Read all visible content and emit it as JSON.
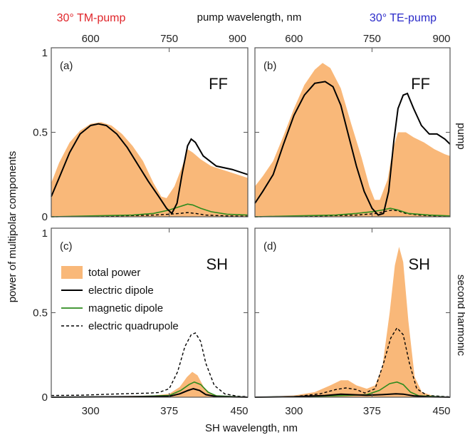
{
  "header": {
    "left_label": "30° TM-pump",
    "center_label": "pump wavelength, nm",
    "right_label": "30° TE-pump"
  },
  "axes": {
    "ylabel": "power of multipolar components",
    "xlabel": "SH wavelength, nm",
    "right_label_top": "pump",
    "right_label_bottom": "second harmonic"
  },
  "colors": {
    "total_power": "#F9B879",
    "electric_dipole": "#000000",
    "magnetic_dipole": "#2E8B1E",
    "electric_quadrupole": "#000000",
    "tm_label": "#E0262B",
    "te_label": "#2B2BC9"
  },
  "legend": {
    "placement": "left, inside panel (c)",
    "entries": [
      {
        "key": "total",
        "label": "total power"
      },
      {
        "key": "ed",
        "label": "electric dipole"
      },
      {
        "key": "md",
        "label": "magnetic dipole"
      },
      {
        "key": "eq",
        "label": "electric quadrupole"
      }
    ]
  },
  "chart_data": [
    {
      "id": "a",
      "type": "area",
      "tag": "(a)",
      "label": "FF",
      "x_axis_label": "pump wavelength, nm",
      "x_ticks": [
        600,
        750,
        900
      ],
      "xlim": [
        525,
        900
      ],
      "ylim": [
        0,
        1
      ],
      "y_ticks": [
        0,
        0.5,
        1
      ],
      "y_tick_labels": [
        "0",
        "0.5",
        "1"
      ],
      "series": {
        "total": [
          [
            525,
            0.2
          ],
          [
            540,
            0.32
          ],
          [
            560,
            0.44
          ],
          [
            580,
            0.51
          ],
          [
            600,
            0.55
          ],
          [
            620,
            0.56
          ],
          [
            640,
            0.54
          ],
          [
            660,
            0.49
          ],
          [
            680,
            0.42
          ],
          [
            700,
            0.33
          ],
          [
            720,
            0.2
          ],
          [
            735,
            0.12
          ],
          [
            745,
            0.11
          ],
          [
            760,
            0.18
          ],
          [
            775,
            0.3
          ],
          [
            785,
            0.4
          ],
          [
            795,
            0.38
          ],
          [
            810,
            0.34
          ],
          [
            830,
            0.3
          ],
          [
            860,
            0.27
          ],
          [
            890,
            0.24
          ],
          [
            900,
            0.23
          ]
        ],
        "ed": [
          [
            525,
            0.12
          ],
          [
            540,
            0.23
          ],
          [
            560,
            0.38
          ],
          [
            580,
            0.49
          ],
          [
            600,
            0.54
          ],
          [
            615,
            0.55
          ],
          [
            630,
            0.54
          ],
          [
            650,
            0.49
          ],
          [
            670,
            0.41
          ],
          [
            690,
            0.31
          ],
          [
            710,
            0.21
          ],
          [
            730,
            0.12
          ],
          [
            745,
            0.05
          ],
          [
            755,
            0.02
          ],
          [
            765,
            0.08
          ],
          [
            775,
            0.26
          ],
          [
            785,
            0.42
          ],
          [
            792,
            0.46
          ],
          [
            800,
            0.44
          ],
          [
            815,
            0.36
          ],
          [
            840,
            0.3
          ],
          [
            870,
            0.28
          ],
          [
            900,
            0.25
          ]
        ],
        "md": [
          [
            525,
            0
          ],
          [
            600,
            0.005
          ],
          [
            680,
            0.01
          ],
          [
            720,
            0.02
          ],
          [
            750,
            0.04
          ],
          [
            770,
            0.06
          ],
          [
            785,
            0.075
          ],
          [
            795,
            0.07
          ],
          [
            810,
            0.05
          ],
          [
            830,
            0.03
          ],
          [
            860,
            0.015
          ],
          [
            900,
            0.01
          ]
        ],
        "eq": [
          [
            525,
            0
          ],
          [
            650,
            0.005
          ],
          [
            720,
            0.01
          ],
          [
            750,
            0.015
          ],
          [
            770,
            0.02
          ],
          [
            785,
            0.025
          ],
          [
            800,
            0.02
          ],
          [
            820,
            0.01
          ],
          [
            860,
            0.005
          ],
          [
            900,
            0.003
          ]
        ]
      }
    },
    {
      "id": "b",
      "type": "area",
      "tag": "(b)",
      "label": "FF",
      "x_axis_label": "pump wavelength, nm",
      "x_ticks": [
        600,
        750,
        900
      ],
      "xlim": [
        525,
        900
      ],
      "ylim": [
        0,
        1
      ],
      "y_ticks": [
        0,
        0.5,
        1
      ],
      "y_tick_labels": [
        "",
        "",
        ""
      ],
      "series": {
        "total": [
          [
            525,
            0.18
          ],
          [
            540,
            0.24
          ],
          [
            560,
            0.33
          ],
          [
            580,
            0.48
          ],
          [
            600,
            0.64
          ],
          [
            620,
            0.78
          ],
          [
            640,
            0.87
          ],
          [
            655,
            0.91
          ],
          [
            670,
            0.88
          ],
          [
            690,
            0.76
          ],
          [
            710,
            0.55
          ],
          [
            730,
            0.35
          ],
          [
            745,
            0.18
          ],
          [
            755,
            0.1
          ],
          [
            765,
            0.1
          ],
          [
            780,
            0.22
          ],
          [
            790,
            0.4
          ],
          [
            800,
            0.5
          ],
          [
            815,
            0.5
          ],
          [
            830,
            0.47
          ],
          [
            850,
            0.44
          ],
          [
            870,
            0.4
          ],
          [
            890,
            0.37
          ],
          [
            900,
            0.36
          ]
        ],
        "ed": [
          [
            525,
            0.08
          ],
          [
            540,
            0.15
          ],
          [
            560,
            0.25
          ],
          [
            580,
            0.43
          ],
          [
            600,
            0.6
          ],
          [
            620,
            0.72
          ],
          [
            640,
            0.79
          ],
          [
            660,
            0.8
          ],
          [
            675,
            0.77
          ],
          [
            690,
            0.66
          ],
          [
            705,
            0.48
          ],
          [
            720,
            0.3
          ],
          [
            735,
            0.15
          ],
          [
            750,
            0.05
          ],
          [
            762,
            0.01
          ],
          [
            772,
            0.02
          ],
          [
            782,
            0.15
          ],
          [
            792,
            0.45
          ],
          [
            800,
            0.64
          ],
          [
            810,
            0.72
          ],
          [
            818,
            0.73
          ],
          [
            830,
            0.64
          ],
          [
            845,
            0.54
          ],
          [
            860,
            0.49
          ],
          [
            875,
            0.49
          ],
          [
            890,
            0.46
          ],
          [
            900,
            0.43
          ]
        ],
        "md": [
          [
            525,
            0
          ],
          [
            600,
            0.005
          ],
          [
            680,
            0.01
          ],
          [
            720,
            0.02
          ],
          [
            750,
            0.03
          ],
          [
            770,
            0.04
          ],
          [
            785,
            0.05
          ],
          [
            800,
            0.04
          ],
          [
            820,
            0.02
          ],
          [
            860,
            0.01
          ],
          [
            900,
            0.005
          ]
        ],
        "eq": [
          [
            525,
            0
          ],
          [
            650,
            0.005
          ],
          [
            720,
            0.01
          ],
          [
            760,
            0.02
          ],
          [
            780,
            0.035
          ],
          [
            790,
            0.04
          ],
          [
            800,
            0.035
          ],
          [
            815,
            0.02
          ],
          [
            840,
            0.01
          ],
          [
            880,
            0.003
          ],
          [
            900,
            0.002
          ]
        ]
      }
    },
    {
      "id": "c",
      "type": "area",
      "tag": "(c)",
      "label": "SH",
      "x_axis_label": "SH wavelength, nm",
      "x_ticks": [
        300,
        375,
        450
      ],
      "xlim": [
        262.5,
        450
      ],
      "ylim": [
        0,
        1
      ],
      "y_ticks": [
        0,
        0.5,
        1
      ],
      "y_tick_labels": [
        "0",
        "0.5",
        "1"
      ],
      "series": {
        "total": [
          [
            262.5,
            0
          ],
          [
            300,
            0.003
          ],
          [
            340,
            0.008
          ],
          [
            360,
            0.01
          ],
          [
            375,
            0.02
          ],
          [
            385,
            0.06
          ],
          [
            392,
            0.12
          ],
          [
            397,
            0.15
          ],
          [
            402,
            0.13
          ],
          [
            408,
            0.06
          ],
          [
            415,
            0.02
          ],
          [
            425,
            0.005
          ],
          [
            450,
            0
          ]
        ],
        "ed": [
          [
            262.5,
            0
          ],
          [
            340,
            0.003
          ],
          [
            375,
            0.005
          ],
          [
            385,
            0.02
          ],
          [
            393,
            0.04
          ],
          [
            398,
            0.05
          ],
          [
            404,
            0.04
          ],
          [
            410,
            0.015
          ],
          [
            420,
            0.004
          ],
          [
            450,
            0
          ]
        ],
        "md": [
          [
            262.5,
            0
          ],
          [
            340,
            0.003
          ],
          [
            375,
            0.01
          ],
          [
            386,
            0.04
          ],
          [
            394,
            0.075
          ],
          [
            399,
            0.09
          ],
          [
            405,
            0.075
          ],
          [
            412,
            0.03
          ],
          [
            420,
            0.008
          ],
          [
            450,
            0
          ]
        ],
        "eq": [
          [
            262.5,
            0.01
          ],
          [
            290,
            0.012
          ],
          [
            320,
            0.018
          ],
          [
            340,
            0.022
          ],
          [
            355,
            0.024
          ],
          [
            365,
            0.028
          ],
          [
            375,
            0.05
          ],
          [
            383,
            0.15
          ],
          [
            390,
            0.3
          ],
          [
            396,
            0.37
          ],
          [
            400,
            0.38
          ],
          [
            405,
            0.33
          ],
          [
            410,
            0.2
          ],
          [
            418,
            0.07
          ],
          [
            428,
            0.02
          ],
          [
            440,
            0.006
          ],
          [
            450,
            0.003
          ]
        ]
      }
    },
    {
      "id": "d",
      "type": "area",
      "tag": "(d)",
      "label": "SH",
      "x_axis_label": "SH wavelength, nm",
      "x_ticks": [
        300,
        375,
        450
      ],
      "xlim": [
        262.5,
        450
      ],
      "ylim": [
        0,
        1
      ],
      "y_ticks": [
        0,
        0.5,
        1
      ],
      "y_tick_labels": [
        "",
        "",
        ""
      ],
      "series": {
        "total": [
          [
            262.5,
            0
          ],
          [
            300,
            0.01
          ],
          [
            320,
            0.03
          ],
          [
            335,
            0.07
          ],
          [
            345,
            0.1
          ],
          [
            352,
            0.1
          ],
          [
            360,
            0.07
          ],
          [
            370,
            0.05
          ],
          [
            378,
            0.07
          ],
          [
            385,
            0.18
          ],
          [
            392,
            0.5
          ],
          [
            397,
            0.78
          ],
          [
            401,
            0.89
          ],
          [
            405,
            0.8
          ],
          [
            410,
            0.45
          ],
          [
            416,
            0.12
          ],
          [
            423,
            0.03
          ],
          [
            435,
            0.005
          ],
          [
            450,
            0
          ]
        ],
        "ed": [
          [
            262.5,
            0
          ],
          [
            300,
            0.003
          ],
          [
            330,
            0.01
          ],
          [
            345,
            0.018
          ],
          [
            355,
            0.015
          ],
          [
            370,
            0.012
          ],
          [
            385,
            0.015
          ],
          [
            398,
            0.02
          ],
          [
            405,
            0.018
          ],
          [
            415,
            0.008
          ],
          [
            430,
            0.002
          ],
          [
            450,
            0
          ]
        ],
        "md": [
          [
            262.5,
            0
          ],
          [
            320,
            0.005
          ],
          [
            350,
            0.01
          ],
          [
            370,
            0.015
          ],
          [
            382,
            0.04
          ],
          [
            392,
            0.08
          ],
          [
            399,
            0.09
          ],
          [
            405,
            0.075
          ],
          [
            412,
            0.03
          ],
          [
            420,
            0.008
          ],
          [
            450,
            0
          ]
        ],
        "eq": [
          [
            262.5,
            0
          ],
          [
            300,
            0.003
          ],
          [
            325,
            0.02
          ],
          [
            340,
            0.045
          ],
          [
            350,
            0.055
          ],
          [
            360,
            0.045
          ],
          [
            368,
            0.025
          ],
          [
            378,
            0.05
          ],
          [
            386,
            0.2
          ],
          [
            393,
            0.35
          ],
          [
            399,
            0.41
          ],
          [
            405,
            0.37
          ],
          [
            411,
            0.2
          ],
          [
            418,
            0.05
          ],
          [
            428,
            0.01
          ],
          [
            450,
            0.002
          ]
        ]
      }
    }
  ]
}
